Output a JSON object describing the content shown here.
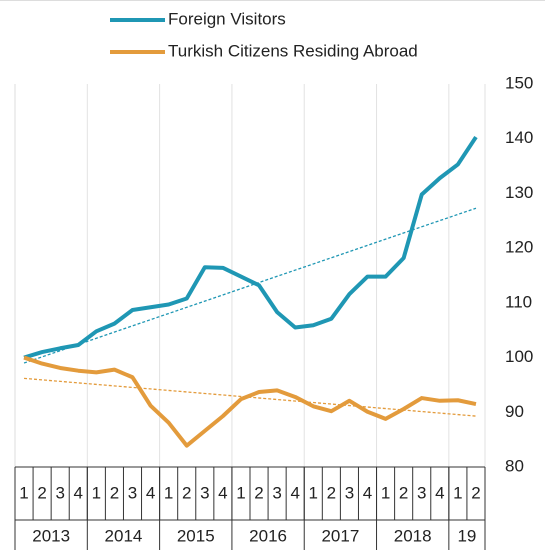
{
  "chart_data": {
    "type": "line",
    "categories": [
      "1",
      "2",
      "3",
      "4",
      "1",
      "2",
      "3",
      "4",
      "1",
      "2",
      "3",
      "4",
      "1",
      "2",
      "3",
      "4",
      "1",
      "2",
      "3",
      "4",
      "1",
      "2",
      "3",
      "4",
      "1",
      "2"
    ],
    "categories_year": [
      "2013",
      "2013",
      "2013",
      "2013",
      "2014",
      "2014",
      "2014",
      "2014",
      "2015",
      "2015",
      "2015",
      "2015",
      "2016",
      "2016",
      "2016",
      "2016",
      "2017",
      "2017",
      "2017",
      "2017",
      "2018",
      "2018",
      "2018",
      "2018",
      "19",
      "19"
    ],
    "series": [
      {
        "name": "Foreign Visitors",
        "color": "#1f97b4",
        "values": [
          100,
          101,
          101.7,
          102.3,
          104.8,
          106.2,
          108.7,
          109.2,
          109.7,
          110.8,
          116.5,
          116.4,
          114.8,
          113.2,
          108.3,
          105.5,
          105.9,
          107.1,
          111.6,
          114.8,
          114.8,
          118.2,
          129.8,
          132.8,
          135.3,
          140.3
        ],
        "trend": [
          99,
          127.3
        ]
      },
      {
        "name": "Turkish Citizens Residing Abroad",
        "color": "#e39b3c",
        "values": [
          100,
          98.9,
          98.1,
          97.6,
          97.3,
          97.8,
          96.4,
          91.2,
          88.1,
          83.9,
          86.6,
          89.3,
          92.4,
          93.7,
          94.0,
          92.8,
          91.1,
          90.2,
          92.1,
          90.1,
          88.8,
          90.6,
          92.6,
          92.1,
          92.2,
          91.5
        ],
        "trend": [
          96.2,
          89.3
        ]
      }
    ],
    "ylim": [
      80,
      150
    ],
    "yticks": [
      80,
      90,
      100,
      110,
      120,
      130,
      140,
      150
    ],
    "y_axis_side": "right",
    "grid": "x"
  }
}
